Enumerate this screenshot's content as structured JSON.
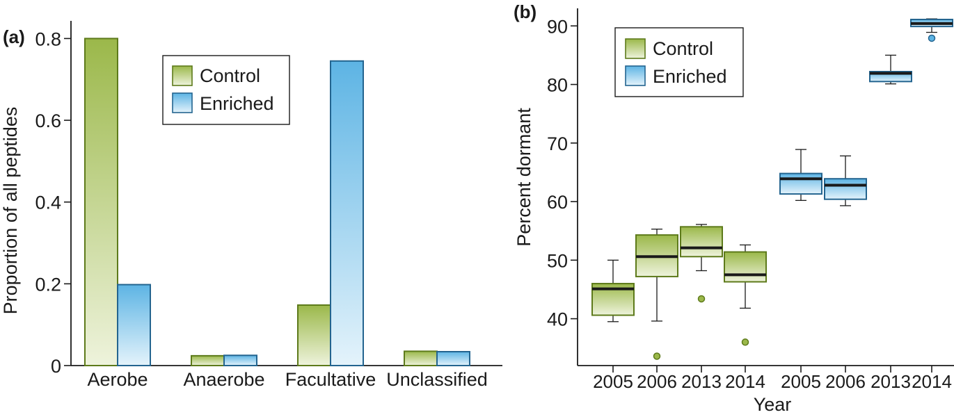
{
  "chart_data": [
    {
      "panel_label": "(a)",
      "type": "bar",
      "ylabel": "Proportion of all peptides",
      "categories": [
        "Aerobe",
        "Anaerobe",
        "Facultative",
        "Unclassified"
      ],
      "series": [
        {
          "name": "Control",
          "values": [
            0.8,
            0.024,
            0.148,
            0.035
          ]
        },
        {
          "name": "Enriched",
          "values": [
            0.198,
            0.025,
            0.745,
            0.034
          ]
        }
      ],
      "ylim": [
        0,
        0.85
      ],
      "yticks": [
        0,
        0.2,
        0.4,
        0.6,
        0.8
      ],
      "ytick_labels": [
        "0",
        "0.2",
        "0.4",
        "0.6",
        "0.8"
      ],
      "legend": {
        "position": "top-right",
        "entries": [
          "Control",
          "Enriched"
        ]
      },
      "colors": {
        "control_fill": "#9bb84a",
        "control_stroke": "#5d7a1a",
        "enriched_fill": "#5db4e4",
        "enriched_stroke": "#23648f"
      }
    },
    {
      "panel_label": "(b)",
      "type": "box",
      "xlabel": "Year",
      "ylabel": "Percent dormant",
      "categories": [
        "2005",
        "2006",
        "2013",
        "2014",
        "2005",
        "2006",
        "2013",
        "2014"
      ],
      "ylim": [
        32,
        93
      ],
      "yticks": [
        40,
        50,
        60,
        70,
        80,
        90
      ],
      "ytick_labels": [
        "40",
        "50",
        "60",
        "70",
        "80",
        "90"
      ],
      "legend": {
        "position": "top-left",
        "entries": [
          "Control",
          "Enriched"
        ]
      },
      "series": [
        {
          "name": "Control",
          "boxes": [
            {
              "year": "2005",
              "whisker_low": 39.5,
              "q1": 40.6,
              "median": 45.1,
              "q3": 46,
              "whisker_high": 50,
              "outliers": []
            },
            {
              "year": "2006",
              "whisker_low": 39.6,
              "q1": 47.2,
              "median": 50.6,
              "q3": 54.3,
              "whisker_high": 55.3,
              "outliers": [
                33.6
              ]
            },
            {
              "year": "2013",
              "whisker_low": 48.2,
              "q1": 50.6,
              "median": 52.1,
              "q3": 55.7,
              "whisker_high": 56.1,
              "outliers": [
                43.4
              ]
            },
            {
              "year": "2014",
              "whisker_low": 41.8,
              "q1": 46.3,
              "median": 47.5,
              "q3": 51.4,
              "whisker_high": 52.6,
              "outliers": [
                36
              ]
            }
          ]
        },
        {
          "name": "Enriched",
          "boxes": [
            {
              "year": "2005",
              "whisker_low": 60.2,
              "q1": 61.3,
              "median": 63.9,
              "q3": 64.8,
              "whisker_high": 68.9,
              "outliers": []
            },
            {
              "year": "2006",
              "whisker_low": 59.3,
              "q1": 60.4,
              "median": 62.8,
              "q3": 63.9,
              "whisker_high": 67.8,
              "outliers": []
            },
            {
              "year": "2013",
              "whisker_low": 80.1,
              "q1": 80.5,
              "median": 81.9,
              "q3": 82.2,
              "whisker_high": 85,
              "outliers": []
            },
            {
              "year": "2014",
              "whisker_low": 88.9,
              "q1": 89.9,
              "median": 90.4,
              "q3": 91.1,
              "whisker_high": 91.2,
              "outliers": [
                87.9
              ]
            }
          ]
        }
      ],
      "colors": {
        "control_fill": "#9bb84a",
        "control_stroke": "#5d7a1a",
        "enriched_fill": "#5db4e4",
        "enriched_stroke": "#23648f"
      }
    }
  ]
}
